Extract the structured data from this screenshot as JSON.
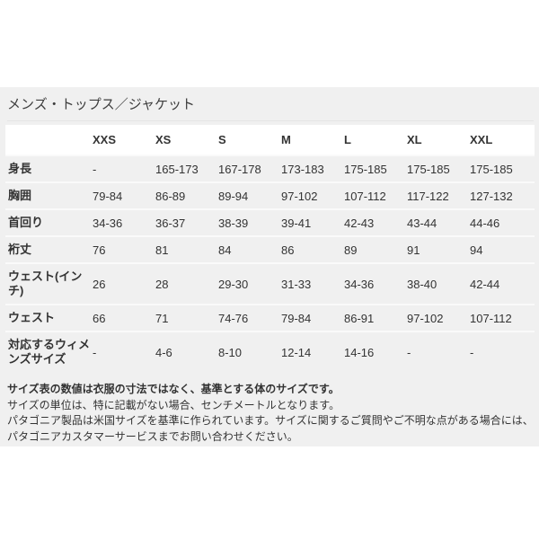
{
  "page": {
    "title": "メンズ・トップス／ジャケット"
  },
  "size_chart": {
    "column_headers": [
      "XXS",
      "XS",
      "S",
      "M",
      "L",
      "XL",
      "XXL"
    ],
    "rows": [
      {
        "label": "身長",
        "values": [
          "-",
          "165-173",
          "167-178",
          "173-183",
          "175-185",
          "175-185",
          "175-185"
        ]
      },
      {
        "label": "胸囲",
        "values": [
          "79-84",
          "86-89",
          "89-94",
          "97-102",
          "107-112",
          "117-122",
          "127-132"
        ]
      },
      {
        "label": "首回り",
        "values": [
          "34-36",
          "36-37",
          "38-39",
          "39-41",
          "42-43",
          "43-44",
          "44-46"
        ]
      },
      {
        "label": "裄丈",
        "values": [
          "76",
          "81",
          "84",
          "86",
          "89",
          "91",
          "94"
        ]
      },
      {
        "label": "ウェスト(インチ)",
        "values": [
          "26",
          "28",
          "29-30",
          "31-33",
          "34-36",
          "38-40",
          "42-44"
        ]
      },
      {
        "label": "ウェスト",
        "values": [
          "66",
          "71",
          "74-76",
          "79-84",
          "86-91",
          "97-102",
          "107-112"
        ]
      },
      {
        "label": "対応するウィメンズサイズ",
        "values": [
          "-",
          "4-6",
          "8-10",
          "12-14",
          "14-16",
          "-",
          "-"
        ]
      }
    ]
  },
  "notes": {
    "line1": "サイズ表の数値は衣服の寸法ではなく、基準とする体のサイズです。",
    "line2": "サイズの単位は、特に記載がない場合、センチメートルとなります。",
    "line3": "パタゴニア製品は米国サイズを基準に作られています。サイズに関するご質問やご不明な点がある場合には、パタゴニアカスタマーサービスまでお問い合わせください。"
  },
  "colors": {
    "panel_bg": "#f0f0f0",
    "header_row_bg": "#ffffff",
    "row_separator": "#fafafa",
    "title_divider": "#e4e4e4",
    "text": "#333333"
  }
}
